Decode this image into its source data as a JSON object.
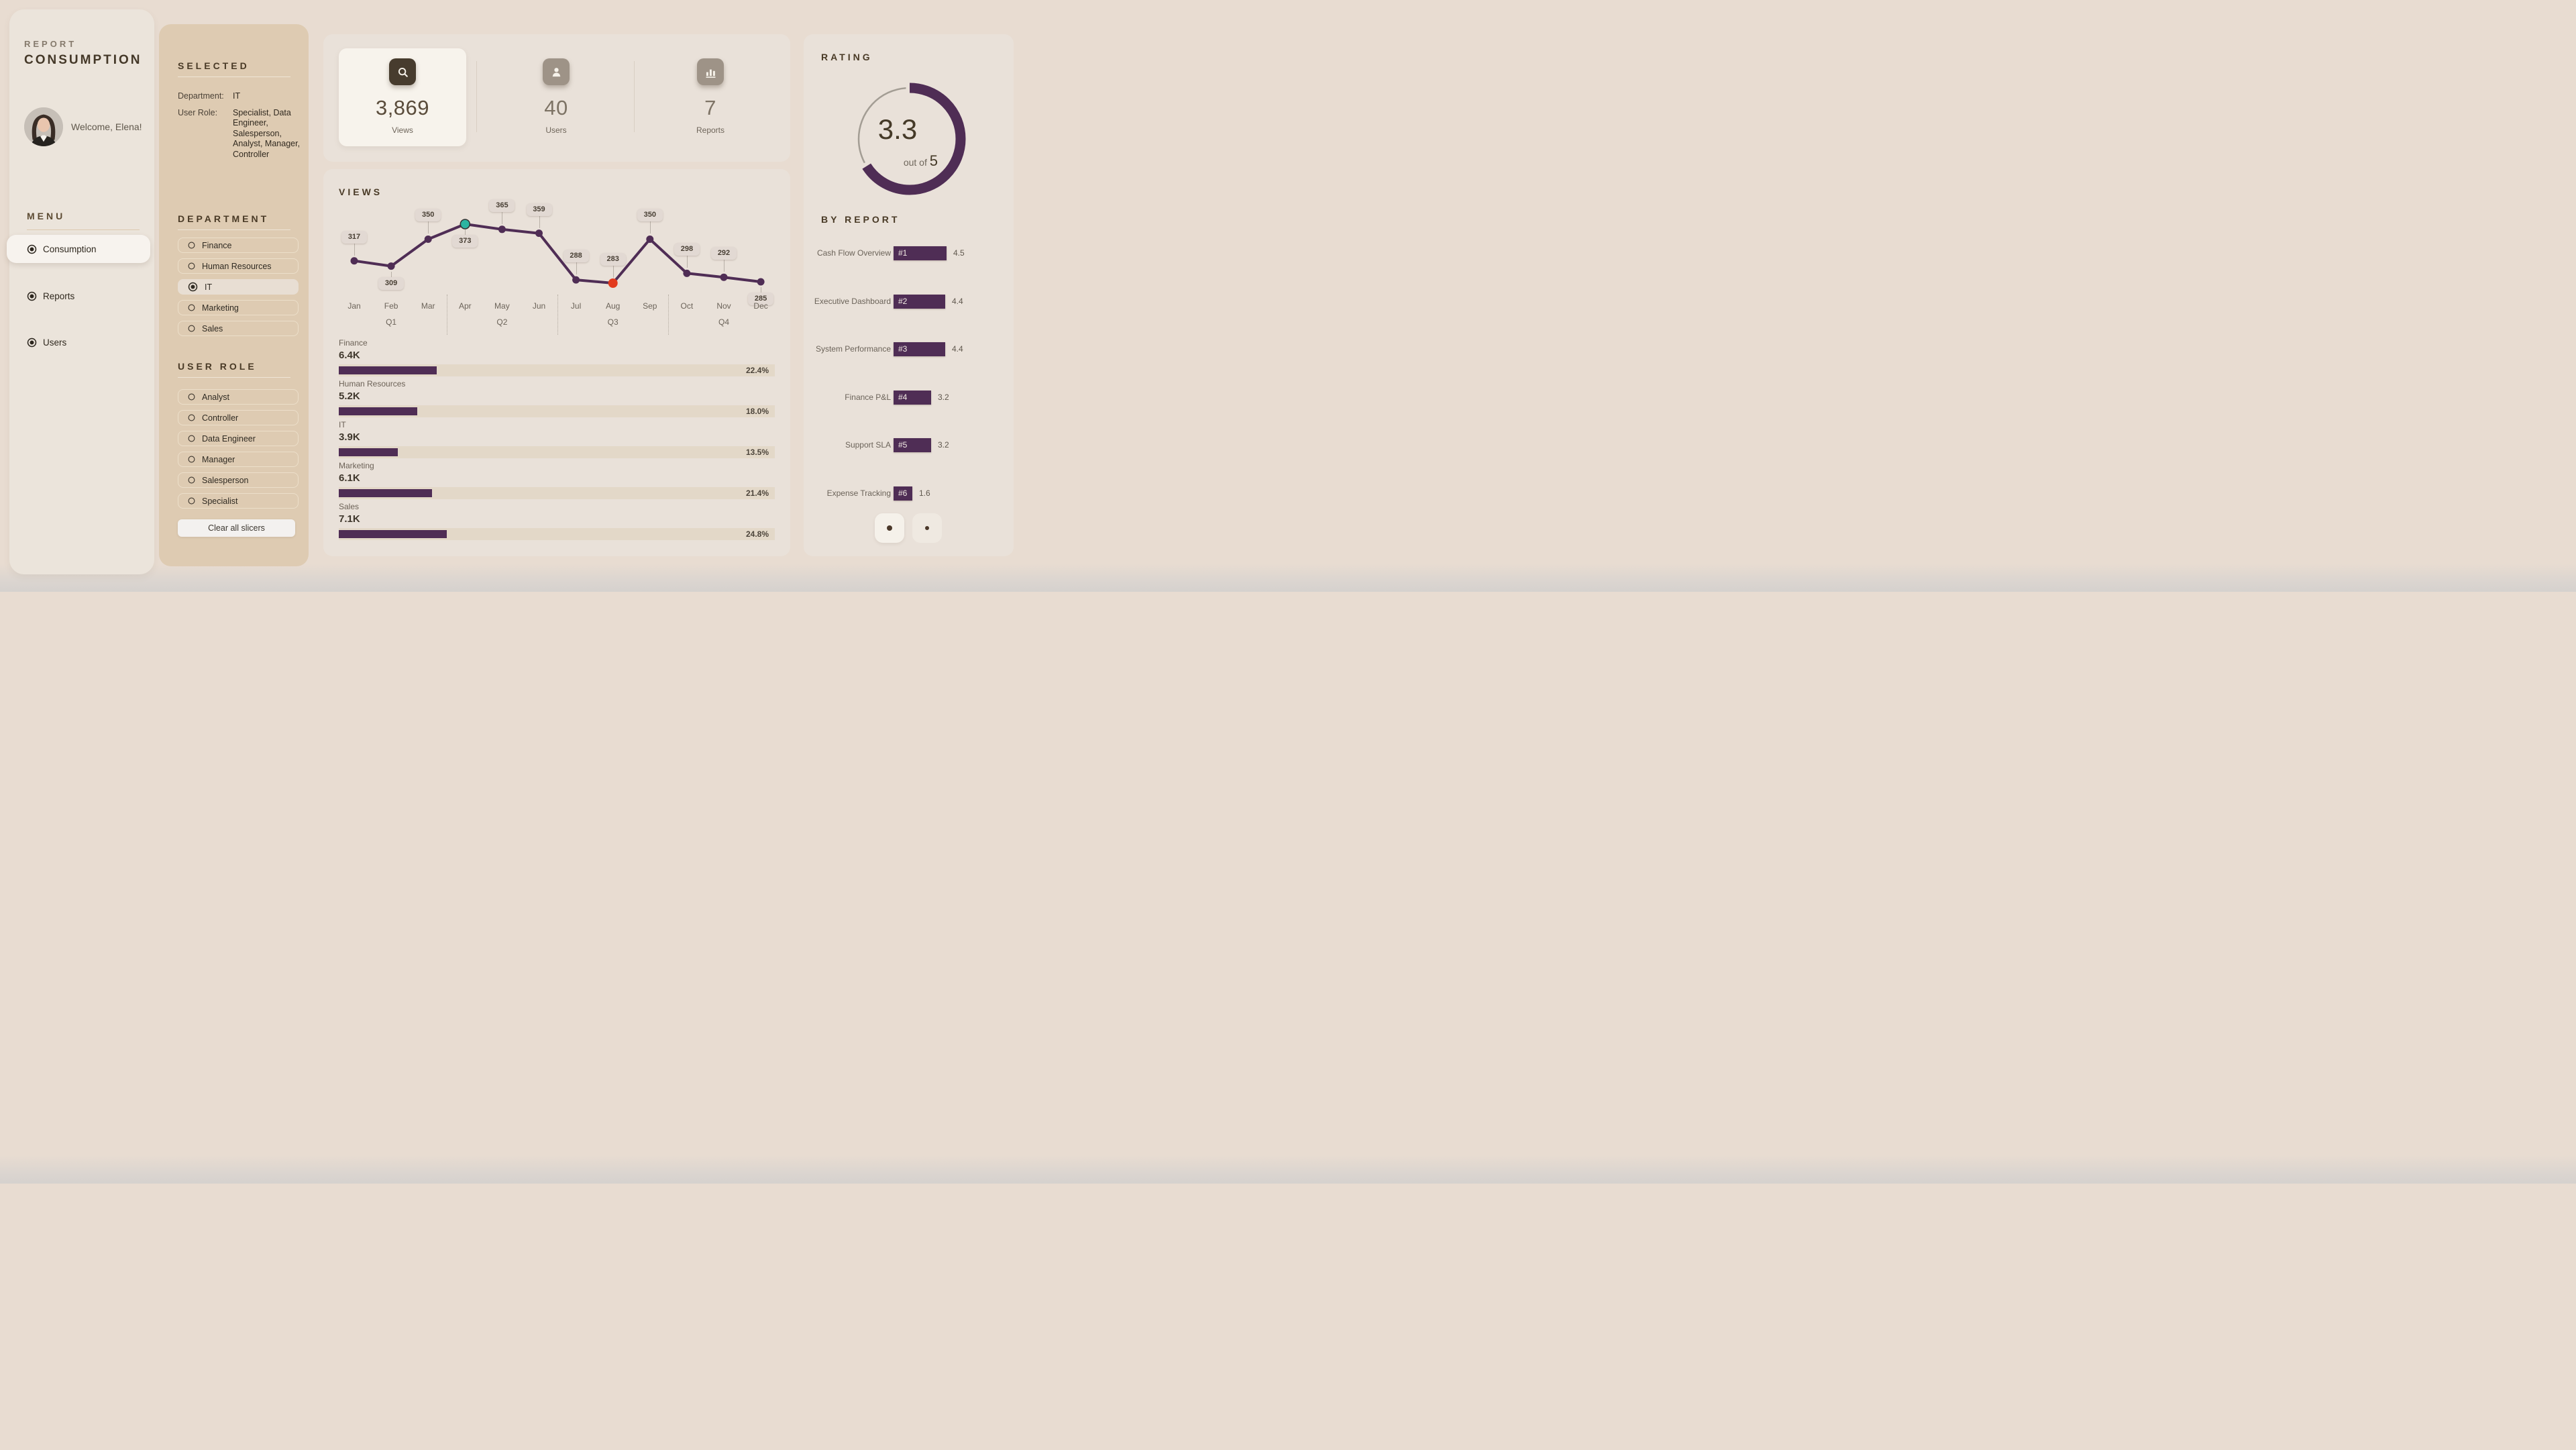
{
  "colors": {
    "page_bg": "#e8dcd1",
    "sidebar_bg": "#ebe4db",
    "slicer_bg": "#decbb2",
    "panel_bg": "#e9e1d9",
    "accent_purple": "#4f2d55",
    "highlight_teal": "#2cb5a1",
    "highlight_red": "#e23b1e",
    "dark_text": "#3e3427",
    "gray_text": "#6b6359",
    "card_bg": "#f7f3ec"
  },
  "sidebar": {
    "title_line1": "REPORT",
    "title_line2": "CONSUMPTION",
    "welcome": "Welcome, Elena!",
    "menu_heading": "MENU",
    "menu": [
      {
        "label": "Consumption",
        "active": true
      },
      {
        "label": "Reports",
        "active": false
      },
      {
        "label": "Users",
        "active": false
      }
    ]
  },
  "selected": {
    "heading": "SELECTED",
    "rows": [
      {
        "key": "Department:",
        "value": "IT"
      },
      {
        "key": "User Role:",
        "value": "Specialist, Data Engineer, Salesperson, Analyst, Manager, Controller"
      }
    ]
  },
  "department_slicer": {
    "heading": "DEPARTMENT",
    "options": [
      {
        "label": "Finance",
        "selected": false
      },
      {
        "label": "Human Resources",
        "selected": false
      },
      {
        "label": "IT",
        "selected": true
      },
      {
        "label": "Marketing",
        "selected": false
      },
      {
        "label": "Sales",
        "selected": false
      }
    ]
  },
  "user_role_slicer": {
    "heading": "USER ROLE",
    "options": [
      {
        "label": "Analyst",
        "selected": false
      },
      {
        "label": "Controller",
        "selected": false
      },
      {
        "label": "Data Engineer",
        "selected": false
      },
      {
        "label": "Manager",
        "selected": false
      },
      {
        "label": "Salesperson",
        "selected": false
      },
      {
        "label": "Specialist",
        "selected": false
      }
    ]
  },
  "clear_button_label": "Clear all slicers",
  "kpis": [
    {
      "icon": "search-icon",
      "value": "3,869",
      "label": "Views",
      "highlight": true
    },
    {
      "icon": "user-icon",
      "value": "40",
      "label": "Users",
      "highlight": false
    },
    {
      "icon": "bar-chart-icon",
      "value": "7",
      "label": "Reports",
      "highlight": false
    }
  ],
  "chart_data": [
    {
      "id": "views_by_month",
      "type": "line",
      "title": "VIEWS",
      "x": [
        "Jan",
        "Feb",
        "Mar",
        "Apr",
        "May",
        "Jun",
        "Jul",
        "Aug",
        "Sep",
        "Oct",
        "Nov",
        "Dec"
      ],
      "values": [
        317,
        309,
        350,
        373,
        365,
        359,
        288,
        283,
        350,
        298,
        292,
        285
      ],
      "quarters": {
        "Feb": "Q1",
        "May": "Q2",
        "Aug": "Q3",
        "Nov": "Q4"
      },
      "quarter_separators_after": [
        "Mar",
        "Jun",
        "Sep"
      ],
      "labels_below_point": [
        "Feb",
        "Apr",
        "Dec"
      ],
      "point_highlights": {
        "Apr": "#2cb5a1",
        "Aug": "#e23b1e"
      },
      "line_color": "#4f2d55",
      "ylim": [
        283,
        373
      ],
      "grid": false,
      "legend": "none"
    },
    {
      "id": "views_by_department",
      "type": "bar",
      "categories": [
        "Finance",
        "Human Resources",
        "IT",
        "Marketing",
        "Sales"
      ],
      "value_labels": [
        "6.4K",
        "5.2K",
        "3.9K",
        "6.1K",
        "7.1K"
      ],
      "values": [
        6400,
        5200,
        3900,
        6100,
        7100
      ],
      "percents": [
        22.4,
        18.0,
        13.5,
        21.4,
        24.8
      ],
      "percent_labels": [
        "22.4%",
        "18.0%",
        "13.5%",
        "21.4%",
        "24.8%"
      ],
      "bar_color": "#4f2d55"
    },
    {
      "id": "rating_gauge",
      "type": "gauge",
      "title": "RATING",
      "value": "3.3",
      "out_of_label": "out of",
      "max": "5",
      "fraction": 0.66,
      "arc_color": "#4f2d55",
      "rest_color": "#a39d94"
    },
    {
      "id": "rating_by_report",
      "type": "bar",
      "title": "BY REPORT",
      "items": [
        {
          "name": "Cash Flow Overview",
          "rank": "#1",
          "rating": 4.5,
          "rating_label": "4.5"
        },
        {
          "name": "Executive Dashboard",
          "rank": "#2",
          "rating": 4.4,
          "rating_label": "4.4"
        },
        {
          "name": "System Performance",
          "rank": "#3",
          "rating": 4.4,
          "rating_label": "4.4"
        },
        {
          "name": "Finance P&L",
          "rank": "#4",
          "rating": 3.2,
          "rating_label": "3.2"
        },
        {
          "name": "Support SLA",
          "rank": "#5",
          "rating": 3.2,
          "rating_label": "3.2"
        },
        {
          "name": "Expense Tracking",
          "rank": "#6",
          "rating": 1.6,
          "rating_label": "1.6"
        }
      ],
      "bar_color": "#4f2d55"
    }
  ],
  "pagination": {
    "pages": 2,
    "active_index": 0
  }
}
